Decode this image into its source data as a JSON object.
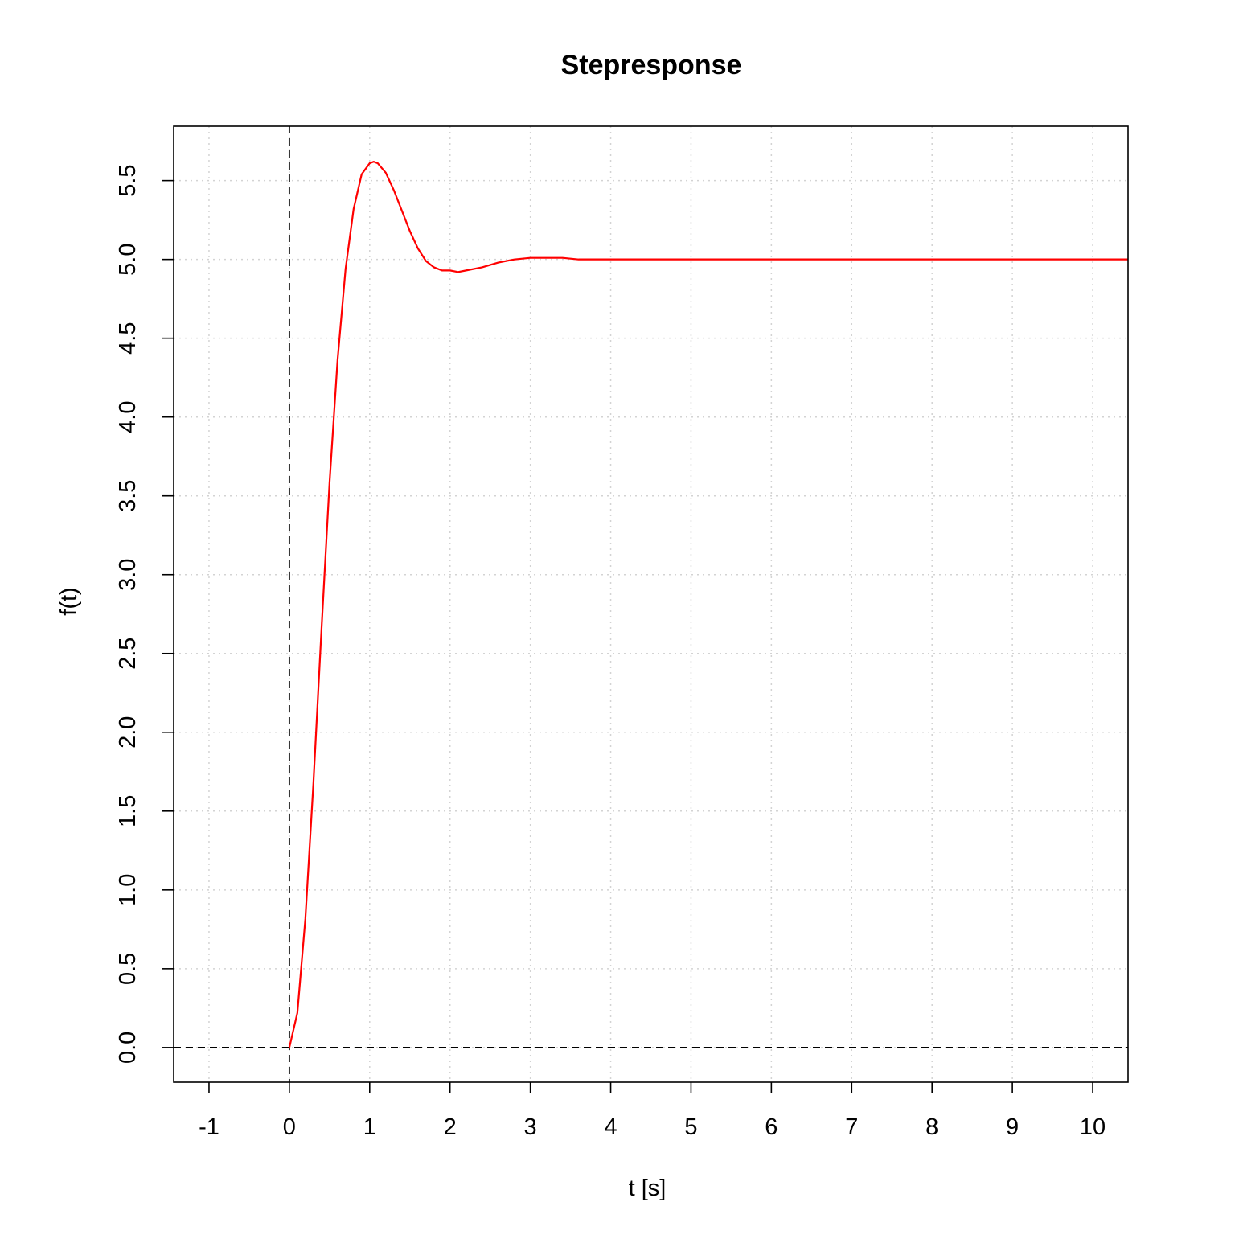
{
  "chart_data": {
    "type": "line",
    "title": "Stepresponse",
    "xlabel": "t [s]",
    "ylabel": "f(t)",
    "xlim": [
      -1.44,
      10.44
    ],
    "ylim": [
      -0.22,
      5.845
    ],
    "x_ticks": [
      -1,
      0,
      1,
      2,
      3,
      4,
      5,
      6,
      7,
      8,
      9,
      10
    ],
    "x_tick_labels": [
      "-1",
      "0",
      "1",
      "2",
      "3",
      "4",
      "5",
      "6",
      "7",
      "8",
      "9",
      "10"
    ],
    "y_ticks": [
      0.0,
      0.5,
      1.0,
      1.5,
      2.0,
      2.5,
      3.0,
      3.5,
      4.0,
      4.5,
      5.0,
      5.5
    ],
    "y_tick_labels": [
      "0.0",
      "0.5",
      "1.0",
      "1.5",
      "2.0",
      "2.5",
      "3.0",
      "3.5",
      "4.0",
      "4.5",
      "5.0",
      "5.5"
    ],
    "grid": true,
    "reference_lines": [
      {
        "orientation": "horizontal",
        "value": 0,
        "style": "dashed",
        "color": "#000000"
      },
      {
        "orientation": "vertical",
        "value": 0,
        "style": "dashed",
        "color": "#000000"
      }
    ],
    "series": [
      {
        "color": "#ff0000",
        "x": [
          0.0,
          0.1,
          0.2,
          0.3,
          0.4,
          0.5,
          0.6,
          0.7,
          0.8,
          0.9,
          1.0,
          1.05,
          1.1,
          1.2,
          1.3,
          1.4,
          1.5,
          1.6,
          1.7,
          1.8,
          1.9,
          2.0,
          2.1,
          2.2,
          2.4,
          2.6,
          2.8,
          3.0,
          3.2,
          3.4,
          3.6,
          3.8,
          4.0,
          4.5,
          5.0,
          6.0,
          7.0,
          8.0,
          9.0,
          10.0,
          10.44
        ],
        "y": [
          0.0,
          0.22,
          0.82,
          1.68,
          2.65,
          3.58,
          4.36,
          4.94,
          5.32,
          5.54,
          5.61,
          5.62,
          5.61,
          5.55,
          5.44,
          5.31,
          5.18,
          5.07,
          4.99,
          4.95,
          4.93,
          4.93,
          4.92,
          4.93,
          4.95,
          4.98,
          5.0,
          5.01,
          5.01,
          5.01,
          5.0,
          5.0,
          5.0,
          5.0,
          5.0,
          5.0,
          5.0,
          5.0,
          5.0,
          5.0,
          5.0
        ]
      }
    ]
  }
}
